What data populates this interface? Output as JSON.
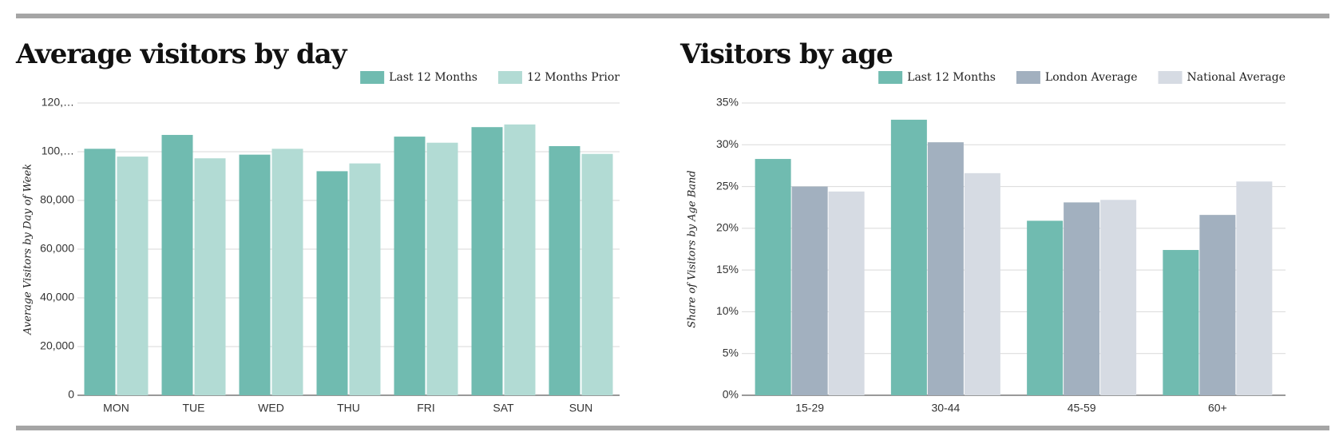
{
  "chart_data": [
    {
      "type": "bar",
      "title": "Average visitors by day",
      "y_label": "Average Visitors by Day of Week",
      "categories": [
        "MON",
        "TUE",
        "WED",
        "THU",
        "FRI",
        "SAT",
        "SUN"
      ],
      "series": [
        {
          "name": "Last 12 Months",
          "color": "#70bbb0",
          "values": [
            101200,
            106900,
            98800,
            92000,
            106200,
            110100,
            102300
          ]
        },
        {
          "name": "12 Months Prior",
          "color": "#b2dbd4",
          "values": [
            98000,
            97300,
            101200,
            95200,
            103700,
            111200,
            99100
          ]
        }
      ],
      "ylim": [
        0,
        120000
      ],
      "yticks": [
        0,
        {
          "value": 20000,
          "label": "20,000"
        },
        {
          "value": 40000,
          "label": "40,000"
        },
        {
          "value": 60000,
          "label": "60,000"
        },
        {
          "value": 80000,
          "label": "80,000"
        },
        {
          "value": 100000,
          "label": "100,…"
        },
        {
          "value": 120000,
          "label": "120,…"
        }
      ],
      "grid": true,
      "legend": "top-right"
    },
    {
      "type": "bar",
      "title": "Visitors by age",
      "y_label": "Share of Visitors by Age Band",
      "categories": [
        "15-29",
        "30-44",
        "45-59",
        "60+"
      ],
      "series": [
        {
          "name": "Last 12 Months",
          "color": "#70bbb0",
          "values": [
            28.3,
            33.0,
            20.9,
            17.4
          ]
        },
        {
          "name": "London Average",
          "color": "#a2b0bf",
          "values": [
            25.0,
            30.3,
            23.1,
            21.6
          ]
        },
        {
          "name": "National Average",
          "color": "#d6dbe3",
          "values": [
            24.4,
            26.6,
            23.4,
            25.6
          ]
        }
      ],
      "ylim": [
        0,
        35
      ],
      "yticks": [
        {
          "value": 0,
          "label": "0%"
        },
        {
          "value": 5,
          "label": "5%"
        },
        {
          "value": 10,
          "label": "10%"
        },
        {
          "value": 15,
          "label": "15%"
        },
        {
          "value": 20,
          "label": "20%"
        },
        {
          "value": 25,
          "label": "25%"
        },
        {
          "value": 30,
          "label": "30%"
        },
        {
          "value": 35,
          "label": "35%"
        }
      ],
      "grid": true,
      "legend": "top-right"
    }
  ]
}
